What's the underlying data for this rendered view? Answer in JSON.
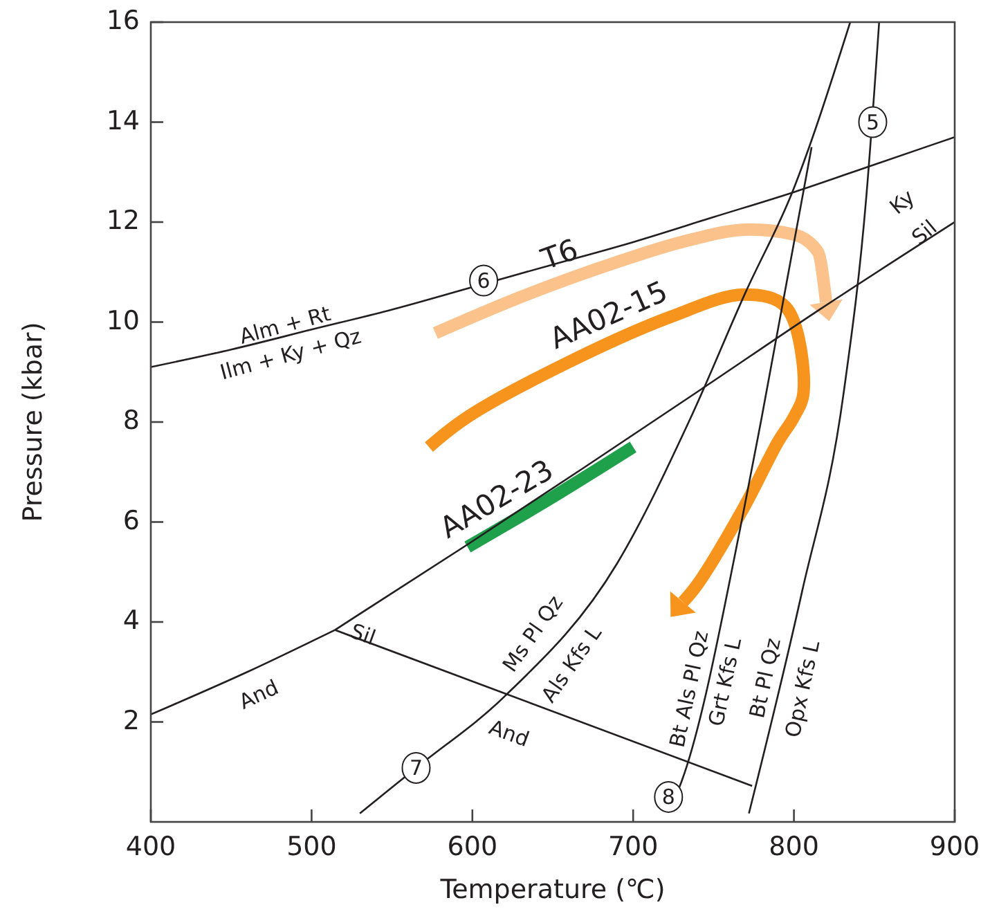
{
  "chart_data": {
    "type": "line",
    "xlabel": "Temperature (℃)",
    "ylabel": "Pressure (kbar)",
    "xlim": [
      400,
      900
    ],
    "ylim": [
      0,
      16
    ],
    "xticks": [
      400,
      500,
      600,
      700,
      800,
      900
    ],
    "yticks": [
      2,
      4,
      6,
      8,
      10,
      12,
      14,
      16
    ],
    "grid": false,
    "marker": "none",
    "line_style": "solid",
    "series": [
      {
        "color": "#231f20",
        "x": [
          400,
          450,
          500,
          550,
          600,
          650,
          700,
          750,
          800,
          850,
          900
        ],
        "values": [
          9.1,
          9.45,
          9.85,
          10.25,
          10.7,
          11.15,
          11.6,
          12.1,
          12.6,
          13.15,
          13.7
        ]
      },
      {
        "color": "#231f20",
        "x": [
          400,
          460,
          514.5
        ],
        "values": [
          2.15,
          3.0,
          3.84
        ]
      },
      {
        "color": "#231f20",
        "x": [
          514.5,
          597,
          670,
          743,
          816,
          900
        ],
        "values": [
          3.84,
          5.55,
          7.1,
          8.67,
          10.25,
          12.0
        ]
      },
      {
        "color": "#231f20",
        "x": [
          514.5,
          774
        ],
        "values": [
          3.84,
          0.72
        ]
      },
      {
        "color": "#231f20",
        "x": [
          530,
          565,
          620,
          690,
          736,
          770,
          799,
          835
        ],
        "values": [
          0.17,
          1.08,
          2.51,
          5.17,
          8.1,
          10.6,
          12.6,
          16
        ]
      },
      {
        "color": "#231f20",
        "x": [
          722,
          730,
          768,
          780,
          811
        ],
        "values": [
          0.2,
          0.8,
          6.1,
          8.1,
          13.5
        ]
      },
      {
        "color": "#231f20",
        "x": [
          772,
          805,
          831,
          845,
          853
        ],
        "values": [
          0.17,
          4.6,
          8.6,
          12.5,
          16
        ]
      },
      {
        "name": "T6",
        "color": "#fbc28c",
        "x": [
          577,
          630,
          690,
          730,
          773,
          800,
          815,
          820
        ],
        "values": [
          9.78,
          10.5,
          11.2,
          11.6,
          11.85,
          11.75,
          11.4,
          10.4
        ]
      },
      {
        "name": "AA02-15",
        "color": "#f7941d",
        "x": [
          573,
          597,
          660,
          723,
          769,
          795,
          806,
          800,
          790,
          769,
          740,
          731
        ],
        "values": [
          7.5,
          8.1,
          9.2,
          10.1,
          10.55,
          10.3,
          8.6,
          8.1,
          7.6,
          6.3,
          4.75,
          4.4
        ]
      },
      {
        "name": "AA02-23",
        "color": "#1fa04a",
        "x": [
          597,
          650,
          700
        ],
        "values": [
          5.5,
          6.5,
          7.5
        ]
      }
    ],
    "annotations": [
      "Alm + Rt",
      "Ilm + Ky + Qz",
      "Ky",
      "Sil",
      {
        "text": "Sil",
        "x": 532,
        "y": 3.75
      },
      "And",
      "And",
      "Ms Pl Qz",
      "Als Kfs L",
      "Bt Als Pl Qz",
      "Grt Kfs L",
      "Bt Pl Qz",
      "Opx Kfs L",
      {
        "text": "5",
        "x": 849,
        "y": 14.0
      },
      {
        "text": "6",
        "x": 607,
        "y": 10.83
      },
      {
        "text": "7",
        "x": 565,
        "y": 1.08
      },
      {
        "text": "8",
        "x": 722,
        "y": 0.5
      }
    ]
  }
}
